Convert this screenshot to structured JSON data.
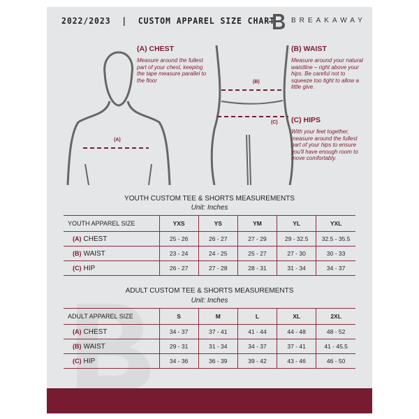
{
  "header": {
    "title": "2022/2023  |  CUSTOM APPAREL SIZE CHART",
    "brand": "BREAKAWAY"
  },
  "measures": {
    "chest": {
      "label": "(A) CHEST",
      "marker": "(A)",
      "text": "Measure around the fullest part of your chest, keeping the tape measure parallel to the floor"
    },
    "waist": {
      "label": "(B) WAIST",
      "marker": "(B)",
      "text": "Measure around your natural waistline – right above your hips. Be careful not to squeeze too tight to allow a little give."
    },
    "hips": {
      "label": "(C) HIPS",
      "marker": "(C)",
      "text": "With your feet together, measure around the fullest part of your hips to ensure you'll have enough room to move comfortably."
    }
  },
  "youth": {
    "title": "YOUTH CUSTOM TEE & SHORTS MEASUREMENTS",
    "unit": "Unit: Inches",
    "header": [
      "YOUTH APPAREL SIZE",
      "YXS",
      "YS",
      "YM",
      "YL",
      "YXL"
    ],
    "rows": [
      {
        "letter": "(A)",
        "name": "CHEST",
        "values": [
          "25 - 26",
          "26 - 27",
          "27 - 29",
          "29 - 32.5",
          "32.5 - 35.5"
        ]
      },
      {
        "letter": "(B)",
        "name": "WAIST",
        "values": [
          "23 - 24",
          "24 - 25",
          "25 - 27",
          "27 - 30",
          "30 - 33"
        ]
      },
      {
        "letter": "(C)",
        "name": "HIP",
        "values": [
          "26 - 27",
          "27 - 28",
          "28 - 31",
          "31 - 34",
          "34 - 37"
        ]
      }
    ]
  },
  "adult": {
    "title": "ADULT CUSTOM TEE & SHORTS MEASUREMENTS",
    "unit": "Unit: Inches",
    "header": [
      "ADULT APPAREL SIZE",
      "S",
      "M",
      "L",
      "XL",
      "2XL"
    ],
    "rows": [
      {
        "letter": "(A)",
        "name": "CHEST",
        "values": [
          "34 - 37",
          "37 - 41",
          "41 - 44",
          "44 - 48",
          "48 - 52"
        ]
      },
      {
        "letter": "(B)",
        "name": "WAIST",
        "values": [
          "29 - 31",
          "31 - 34",
          "34 - 37",
          "37 - 41",
          "41 - 45.5"
        ]
      },
      {
        "letter": "(C)",
        "name": "HIP",
        "values": [
          "34 - 36",
          "36 - 39",
          "39 - 42",
          "43 - 46",
          "46 - 50"
        ]
      }
    ]
  },
  "colors": {
    "accent": "#761b30",
    "panel": "#e5e6e8"
  }
}
